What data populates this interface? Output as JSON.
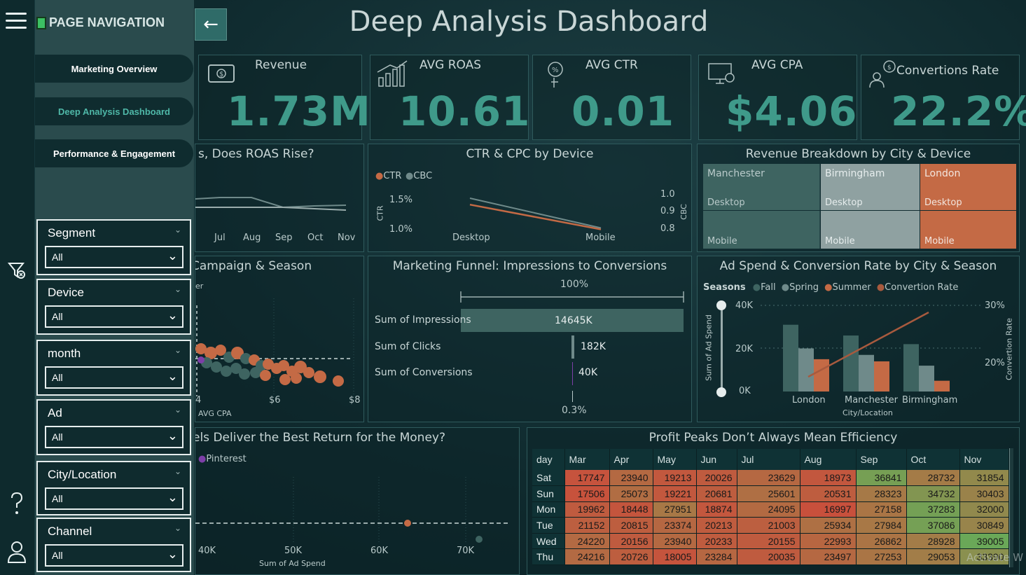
{
  "navigation": {
    "title": "PAGE NAVIGATION",
    "items": [
      {
        "label": "Marketing Overview"
      },
      {
        "label": "Deep Analysis Dashboard"
      },
      {
        "label": "Performance & Engagement"
      }
    ],
    "active_index": 1
  },
  "rail_icons": [
    "menu-icon",
    "filter-clear-icon",
    "help-icon",
    "user-icon"
  ],
  "slicers": [
    {
      "label": "Segment",
      "value": "All"
    },
    {
      "label": "Device",
      "value": "All"
    },
    {
      "label": "month",
      "value": "All"
    },
    {
      "label": "Ad",
      "value": "All"
    },
    {
      "label": "City/Location",
      "value": "All"
    },
    {
      "label": "Channel",
      "value": "All"
    }
  ],
  "page_title": "Deep Analysis Dashboard",
  "kpis": [
    {
      "title": "Revenue",
      "value": "1.73M",
      "icon": "money-icon"
    },
    {
      "title": "AVG ROAS",
      "value": "10.61",
      "icon": "growth-chart-icon"
    },
    {
      "title": "AVG CTR",
      "value": "0.01",
      "icon": "click-percent-icon"
    },
    {
      "title": "AVG CPA",
      "value": "$4.06",
      "icon": "cost-monitor-icon"
    },
    {
      "title": "Convertions Rate",
      "value": "22.2%",
      "icon": "conversion-people-icon"
    }
  ],
  "roas_panel": {
    "title": "s, Does ROAS Rise?",
    "months": [
      "Jul",
      "Aug",
      "Sep",
      "Oct",
      "Nov"
    ]
  },
  "ctr_cpc": {
    "title": "CTR & CPC by Device",
    "legend": [
      "CTR",
      "CBC"
    ],
    "left_axis_title": "CTR",
    "right_axis_title": "CBC",
    "left_ticks": [
      "1.5%",
      "1.0%"
    ],
    "right_ticks": [
      "1.0",
      "0.9",
      "0.8"
    ],
    "categories": [
      "Desktop",
      "Mobile"
    ]
  },
  "treemap": {
    "title": "Revenue Breakdown by City & Device",
    "cities": [
      {
        "name": "Manchester",
        "top": "Desktop",
        "bottom": "Mobile",
        "color": "#3e6461"
      },
      {
        "name": "Birmingham",
        "top": "Desktop",
        "bottom": "Mobile",
        "color": "#8fa1a1"
      },
      {
        "name": "London",
        "top": "Desktop",
        "bottom": "Mobile",
        "color": "#c46a45"
      }
    ]
  },
  "scatter_campaign": {
    "title": "Campaign & Season",
    "legend_fragment": "er",
    "x_ticks": [
      "4",
      "$6",
      "$8"
    ],
    "x_label": "AVG CPA"
  },
  "funnel": {
    "title": "Marketing Funnel: Impressions to Conversions",
    "top_label": "100%",
    "bottom_label": "0.3%",
    "stages": [
      {
        "label": "Sum of Impressions",
        "value": "14645K"
      },
      {
        "label": "Sum of Clicks",
        "value": "182K"
      },
      {
        "label": "Sum of Conversions",
        "value": "40K"
      }
    ]
  },
  "adspend": {
    "title": "Ad Spend & Conversion Rate by City & Season",
    "legend_title": "Seasons",
    "legend": [
      {
        "name": "Fall",
        "color": "#3e6461"
      },
      {
        "name": "Spring",
        "color": "#6f8a8a"
      },
      {
        "name": "Summer",
        "color": "#c46a45"
      },
      {
        "name": "Convertion Rate",
        "color": "#a85a3e"
      }
    ],
    "y_left_ticks": [
      "40K",
      "20K",
      "0K"
    ],
    "y_right_ticks": [
      "30%",
      "20%"
    ],
    "y_left_title": "Sum of Ad Spend",
    "y_right_title": "Convertion Rate",
    "x_title": "City/Location"
  },
  "chart_data": [
    {
      "type": "bar",
      "title": "Ad Spend & Conversion Rate by City & Season",
      "categories": [
        "London",
        "Manchester",
        "Birmingham"
      ],
      "series": [
        {
          "name": "Fall",
          "values": [
            31000,
            26000,
            22000
          ]
        },
        {
          "name": "Spring",
          "values": [
            20000,
            17000,
            12000
          ]
        },
        {
          "name": "Summer",
          "values": [
            15000,
            14000,
            5000
          ]
        }
      ],
      "ylim": [
        0,
        40000
      ],
      "ylabel": "Sum of Ad Spend",
      "xlabel": "City/Location"
    },
    {
      "type": "line",
      "title": "CTR & CPC by Device",
      "categories": [
        "Desktop",
        "Mobile"
      ],
      "series": [
        {
          "name": "CTR",
          "values": [
            1.45,
            1.03
          ]
        },
        {
          "name": "CBC",
          "values": [
            0.98,
            0.81
          ]
        }
      ]
    }
  ],
  "channel_panel": {
    "title": "els Deliver the Best Return for the Money?",
    "legend": "Pinterest",
    "x_ticks": [
      "40K",
      "50K",
      "60K",
      "70K"
    ],
    "x_label": "Sum of Ad Spend"
  },
  "heatmap": {
    "title": "Profit Peaks Don’t Always Mean Efficiency",
    "columns": [
      "day",
      "Mar",
      "Apr",
      "May",
      "Jun",
      "Jul",
      "Aug",
      "Sep",
      "Oct",
      "Nov"
    ],
    "rows": [
      {
        "day": "Sat",
        "values": [
          "17747",
          "23940",
          "19213",
          "20026",
          "23629",
          "18973",
          "36841",
          "28732",
          "31854"
        ]
      },
      {
        "day": "Sun",
        "values": [
          "17506",
          "25073",
          "19221",
          "20681",
          "25601",
          "20531",
          "28323",
          "34732",
          "30403"
        ]
      },
      {
        "day": "Mon",
        "values": [
          "19962",
          "18448",
          "27951",
          "18874",
          "24095",
          "16997",
          "27158",
          "37283",
          "32000"
        ]
      },
      {
        "day": "Tue",
        "values": [
          "21152",
          "20815",
          "23374",
          "20213",
          "21003",
          "25934",
          "27984",
          "37086",
          "30849"
        ]
      },
      {
        "day": "Wed",
        "values": [
          "24220",
          "20156",
          "23940",
          "20233",
          "20155",
          "22993",
          "26862",
          "28928",
          "39005"
        ]
      },
      {
        "day": "Thu",
        "values": [
          "24216",
          "20726",
          "18005",
          "23284",
          "20035",
          "23497",
          "27253",
          "29053",
          "33390"
        ]
      }
    ]
  },
  "watermark": "Activate W"
}
